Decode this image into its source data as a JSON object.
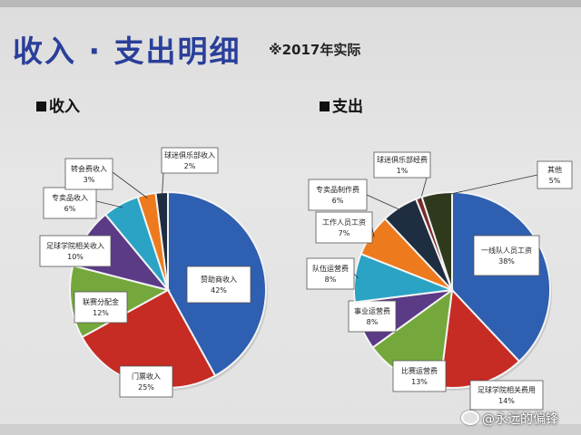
{
  "title": "收入 · 支出明细",
  "subtitle": "※2017年实际",
  "watermark": "@永远的偏锋",
  "chart_data": [
    {
      "type": "pie",
      "heading": "收入",
      "slices": [
        {
          "label": "赞助商收入",
          "value": 42,
          "pct": "42%",
          "color": "#2e5fb0"
        },
        {
          "label": "门票收入",
          "value": 25,
          "pct": "25%",
          "color": "#c62b24"
        },
        {
          "label": "联赛分配金",
          "value": 12,
          "pct": "12%",
          "color": "#74a83c"
        },
        {
          "label": "足球学院相关收入",
          "value": 10,
          "pct": "10%",
          "color": "#5b3a86"
        },
        {
          "label": "专卖品收入",
          "value": 6,
          "pct": "6%",
          "color": "#2aa3c4"
        },
        {
          "label": "转会费收入",
          "value": 3,
          "pct": "3%",
          "color": "#ee7a1e"
        },
        {
          "label": "球迷俱乐部收入",
          "value": 2,
          "pct": "2%",
          "color": "#1f2d40"
        }
      ]
    },
    {
      "type": "pie",
      "heading": "支出",
      "slices": [
        {
          "label": "一线队人员工资",
          "value": 38,
          "pct": "38%",
          "color": "#2e5fb0"
        },
        {
          "label": "足球学院相关费用",
          "value": 14,
          "pct": "14%",
          "color": "#c62b24"
        },
        {
          "label": "比赛运营费",
          "value": 13,
          "pct": "13%",
          "color": "#74a83c"
        },
        {
          "label": "事业运营费",
          "value": 8,
          "pct": "8%",
          "color": "#5b3a86"
        },
        {
          "label": "队伍运营费",
          "value": 8,
          "pct": "8%",
          "color": "#2aa3c4"
        },
        {
          "label": "工作人员工资",
          "value": 7,
          "pct": "7%",
          "color": "#ee7a1e"
        },
        {
          "label": "专卖品制作费",
          "value": 6,
          "pct": "6%",
          "color": "#1f2d40"
        },
        {
          "label": "球迷俱乐部经费",
          "value": 1,
          "pct": "1%",
          "color": "#7a2a2a"
        },
        {
          "label": "其他",
          "value": 5,
          "pct": "5%",
          "color": "#2f3a1c"
        }
      ]
    }
  ]
}
